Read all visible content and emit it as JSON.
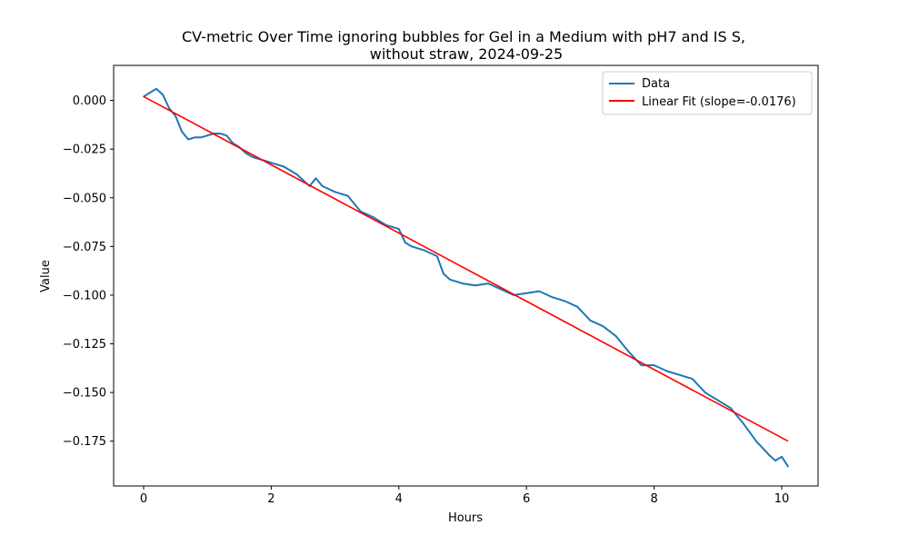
{
  "chart_data": {
    "type": "line",
    "title_lines": [
      "CV-metric Over Time ignoring bubbles for Gel in a Medium with pH7 and IS S,",
      "without straw, 2024-09-25"
    ],
    "xlabel": "Hours",
    "ylabel": "Value",
    "xlim": [
      -0.47,
      10.57
    ],
    "ylim": [
      -0.198,
      0.018
    ],
    "xticks": [
      0,
      2,
      4,
      6,
      8,
      10
    ],
    "xtick_labels": [
      "0",
      "2",
      "4",
      "6",
      "8",
      "10"
    ],
    "yticks": [
      0.0,
      -0.025,
      -0.05,
      -0.075,
      -0.1,
      -0.125,
      -0.15,
      -0.175
    ],
    "ytick_labels": [
      "0.000",
      "−0.025",
      "−0.050",
      "−0.075",
      "−0.100",
      "−0.125",
      "−0.150",
      "−0.175"
    ],
    "grid": false,
    "legend_position": "upper-right",
    "series": [
      {
        "name": "Data",
        "color": "#1f77b4",
        "x": [
          0.0,
          0.1,
          0.2,
          0.3,
          0.4,
          0.5,
          0.6,
          0.7,
          0.8,
          0.9,
          1.0,
          1.1,
          1.2,
          1.3,
          1.4,
          1.5,
          1.6,
          1.7,
          1.8,
          1.9,
          2.0,
          2.2,
          2.4,
          2.6,
          2.7,
          2.8,
          3.0,
          3.2,
          3.4,
          3.6,
          3.8,
          4.0,
          4.1,
          4.2,
          4.4,
          4.6,
          4.7,
          4.8,
          5.0,
          5.2,
          5.4,
          5.6,
          5.8,
          6.0,
          6.2,
          6.4,
          6.6,
          6.8,
          7.0,
          7.2,
          7.4,
          7.6,
          7.8,
          8.0,
          8.2,
          8.4,
          8.6,
          8.8,
          9.0,
          9.2,
          9.4,
          9.6,
          9.8,
          9.9,
          10.0,
          10.1
        ],
        "y": [
          0.002,
          0.004,
          0.006,
          0.003,
          -0.004,
          -0.008,
          -0.016,
          -0.02,
          -0.019,
          -0.019,
          -0.018,
          -0.017,
          -0.017,
          -0.018,
          -0.022,
          -0.024,
          -0.027,
          -0.029,
          -0.03,
          -0.031,
          -0.032,
          -0.034,
          -0.038,
          -0.044,
          -0.04,
          -0.044,
          -0.047,
          -0.049,
          -0.057,
          -0.06,
          -0.064,
          -0.066,
          -0.073,
          -0.075,
          -0.077,
          -0.08,
          -0.089,
          -0.092,
          -0.094,
          -0.095,
          -0.094,
          -0.097,
          -0.1,
          -0.099,
          -0.098,
          -0.101,
          -0.103,
          -0.106,
          -0.113,
          -0.116,
          -0.121,
          -0.129,
          -0.136,
          -0.136,
          -0.139,
          -0.141,
          -0.143,
          -0.15,
          -0.154,
          -0.158,
          -0.166,
          -0.175,
          -0.182,
          -0.185,
          -0.183,
          -0.188
        ]
      },
      {
        "name": "Linear Fit (slope=-0.0176)",
        "color": "#ff0000",
        "x": [
          0.0,
          10.1
        ],
        "y": [
          0.002,
          -0.175
        ]
      }
    ]
  }
}
